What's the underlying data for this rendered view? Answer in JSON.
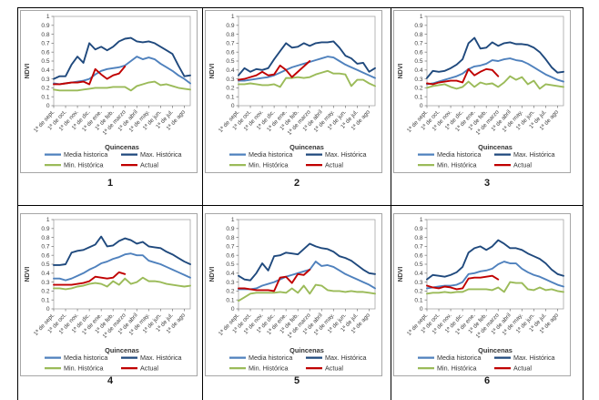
{
  "page": {
    "background": "#ffffff",
    "border_color": "#000000"
  },
  "axis_style": {
    "plot_border_color": "#a6a6a6",
    "tick_color": "#808080",
    "label_color": "#404040"
  },
  "chart_data": [
    {
      "type": "line",
      "number": "1",
      "ylabel": "NDVI",
      "xlabel": "Quincenas",
      "ylim": [
        0,
        1
      ],
      "y_ticks": [
        "1",
        "0.9",
        "0.8",
        "0.7",
        "0.6",
        "0.5",
        "0.4",
        "0.3",
        "0.2",
        "0.1",
        "0"
      ],
      "x_labels": [
        "1ª de sept.",
        "1ª de oct.",
        "1ª de nov.",
        "1ª de dic.",
        "1ª de ene.",
        "1ª de feb.",
        "1ª de marzo",
        "1ª de abril",
        "1ª de may.",
        "1ª de jun.",
        "1ª de jul.",
        "1ª de ago"
      ],
      "legend_position": "bottom",
      "series": [
        {
          "name": "Media historica",
          "color": "#4F81BD",
          "values": [
            0.25,
            0.24,
            0.25,
            0.26,
            0.27,
            0.28,
            0.3,
            0.35,
            0.39,
            0.41,
            0.42,
            0.43,
            0.45,
            0.5,
            0.55,
            0.52,
            0.54,
            0.52,
            0.47,
            0.43,
            0.39,
            0.34,
            0.3,
            0.25
          ]
        },
        {
          "name": "Max. Histórica",
          "color": "#1F497D",
          "values": [
            0.3,
            0.33,
            0.33,
            0.46,
            0.55,
            0.48,
            0.7,
            0.63,
            0.66,
            0.62,
            0.66,
            0.72,
            0.75,
            0.76,
            0.72,
            0.71,
            0.72,
            0.7,
            0.66,
            0.62,
            0.58,
            0.45,
            0.33,
            0.34
          ]
        },
        {
          "name": "Min. Histórica",
          "color": "#9BBB59",
          "values": [
            0.18,
            0.17,
            0.17,
            0.17,
            0.17,
            0.18,
            0.19,
            0.2,
            0.2,
            0.2,
            0.21,
            0.21,
            0.21,
            0.17,
            0.22,
            0.24,
            0.26,
            0.27,
            0.23,
            0.24,
            0.22,
            0.2,
            0.19,
            0.18
          ]
        },
        {
          "name": "Actual",
          "color": "#C00000",
          "values": [
            0.24,
            0.24,
            0.25,
            0.26,
            0.26,
            0.27,
            0.24,
            0.41,
            0.35,
            0.3,
            0.34,
            0.36,
            0.44
          ]
        }
      ]
    },
    {
      "type": "line",
      "number": "2",
      "ylabel": "NDVI",
      "xlabel": "Quincenas",
      "ylim": [
        0,
        1
      ],
      "y_ticks": [
        "1",
        "0.9",
        "0.8",
        "0.7",
        "0.6",
        "0.5",
        "0.4",
        "0.3",
        "0.2",
        "0.1",
        "0"
      ],
      "x_labels": [
        "1ª de sept.",
        "1ª de oct.",
        "1ª de nov.",
        "1ª de dic.",
        "1ª de ene.",
        "1ª de feb.",
        "1ª de marzo",
        "1ª de abril",
        "1ª de may.",
        "1ª de jun.",
        "1ª de jul.",
        "1ª de ago"
      ],
      "legend_position": "bottom",
      "series": [
        {
          "name": "Media historica",
          "color": "#4F81BD",
          "values": [
            0.28,
            0.28,
            0.29,
            0.3,
            0.31,
            0.32,
            0.34,
            0.37,
            0.4,
            0.43,
            0.45,
            0.47,
            0.49,
            0.51,
            0.53,
            0.55,
            0.54,
            0.5,
            0.46,
            0.43,
            0.4,
            0.37,
            0.34,
            0.31
          ]
        },
        {
          "name": "Max. Histórica",
          "color": "#1F497D",
          "values": [
            0.34,
            0.42,
            0.38,
            0.41,
            0.4,
            0.42,
            0.52,
            0.61,
            0.7,
            0.65,
            0.66,
            0.7,
            0.67,
            0.7,
            0.71,
            0.71,
            0.72,
            0.65,
            0.56,
            0.53,
            0.47,
            0.48,
            0.38,
            0.42
          ]
        },
        {
          "name": "Min. Histórica",
          "color": "#9BBB59",
          "values": [
            0.24,
            0.24,
            0.25,
            0.24,
            0.23,
            0.23,
            0.24,
            0.21,
            0.31,
            0.31,
            0.32,
            0.31,
            0.32,
            0.35,
            0.37,
            0.39,
            0.36,
            0.36,
            0.35,
            0.22,
            0.29,
            0.29,
            0.25,
            0.22
          ]
        },
        {
          "name": "Actual",
          "color": "#C00000",
          "values": [
            0.29,
            0.3,
            0.32,
            0.34,
            0.38,
            0.34,
            0.35,
            0.45,
            0.4,
            0.32,
            0.38,
            0.44,
            0.5
          ]
        }
      ]
    },
    {
      "type": "line",
      "number": "3",
      "ylabel": "NDVI",
      "xlabel": "Quincenas",
      "ylim": [
        0,
        1
      ],
      "y_ticks": [
        "1",
        "0.9",
        "0.8",
        "0.7",
        "0.6",
        "0.5",
        "0.4",
        "0.3",
        "0.2",
        "0.1",
        "0"
      ],
      "x_labels": [
        "1ª de sept.",
        "1ª de oct.",
        "1ª de nov.",
        "1ª de dic.",
        "1ª de ene.",
        "1ª de feb.",
        "1ª de marzo",
        "1ª de abril",
        "1ª de may.",
        "1ª de jun.",
        "1ª de jul.",
        "1ª de ago"
      ],
      "legend_position": "bottom",
      "series": [
        {
          "name": "Media historica",
          "color": "#4F81BD",
          "values": [
            0.24,
            0.25,
            0.27,
            0.29,
            0.31,
            0.33,
            0.36,
            0.41,
            0.44,
            0.45,
            0.47,
            0.51,
            0.5,
            0.52,
            0.53,
            0.51,
            0.5,
            0.47,
            0.43,
            0.39,
            0.35,
            0.32,
            0.29,
            0.27
          ]
        },
        {
          "name": "Max. Histórica",
          "color": "#1F497D",
          "values": [
            0.31,
            0.39,
            0.38,
            0.39,
            0.42,
            0.46,
            0.52,
            0.7,
            0.76,
            0.64,
            0.65,
            0.71,
            0.67,
            0.7,
            0.71,
            0.69,
            0.69,
            0.68,
            0.65,
            0.6,
            0.52,
            0.43,
            0.37,
            0.38
          ]
        },
        {
          "name": "Min. Histórica",
          "color": "#9BBB59",
          "values": [
            0.2,
            0.22,
            0.23,
            0.24,
            0.21,
            0.19,
            0.21,
            0.27,
            0.21,
            0.26,
            0.24,
            0.25,
            0.21,
            0.26,
            0.33,
            0.29,
            0.32,
            0.24,
            0.28,
            0.19,
            0.24,
            0.23,
            0.22,
            0.21
          ]
        },
        {
          "name": "Actual",
          "color": "#C00000",
          "values": [
            0.25,
            0.24,
            0.26,
            0.27,
            0.28,
            0.28,
            0.26,
            0.41,
            0.34,
            0.38,
            0.41,
            0.4,
            0.33
          ]
        }
      ]
    },
    {
      "type": "line",
      "number": "4",
      "ylabel": "NDVI",
      "xlabel": "Quincenas",
      "ylim": [
        0,
        1
      ],
      "y_ticks": [
        "1",
        "0.9",
        "0.8",
        "0.7",
        "0.6",
        "0.5",
        "0.4",
        "0.3",
        "0.2",
        "0.1",
        "0"
      ],
      "x_labels": [
        "1ª de sept.",
        "1ª de oct.",
        "1ª de nov.",
        "1ª de dic.",
        "1ª de ene.",
        "1ª de feb.",
        "1ª de marzo",
        "1ª de abril",
        "1ª de may.",
        "1ª de jun.",
        "1ª de jul.",
        "1ª de ago"
      ],
      "legend_position": "bottom",
      "series": [
        {
          "name": "Media historica",
          "color": "#4F81BD",
          "values": [
            0.34,
            0.34,
            0.32,
            0.34,
            0.37,
            0.4,
            0.44,
            0.47,
            0.51,
            0.53,
            0.56,
            0.58,
            0.61,
            0.62,
            0.6,
            0.6,
            0.54,
            0.52,
            0.5,
            0.47,
            0.44,
            0.41,
            0.38,
            0.35
          ]
        },
        {
          "name": "Max. Histórica",
          "color": "#1F497D",
          "values": [
            0.49,
            0.49,
            0.5,
            0.63,
            0.65,
            0.66,
            0.69,
            0.72,
            0.81,
            0.7,
            0.71,
            0.76,
            0.79,
            0.77,
            0.73,
            0.75,
            0.7,
            0.69,
            0.68,
            0.64,
            0.61,
            0.57,
            0.53,
            0.5
          ]
        },
        {
          "name": "Min. Histórica",
          "color": "#9BBB59",
          "values": [
            0.23,
            0.23,
            0.22,
            0.23,
            0.25,
            0.26,
            0.28,
            0.29,
            0.28,
            0.25,
            0.31,
            0.27,
            0.34,
            0.28,
            0.3,
            0.35,
            0.31,
            0.31,
            0.3,
            0.28,
            0.27,
            0.26,
            0.25,
            0.26
          ]
        },
        {
          "name": "Actual",
          "color": "#C00000",
          "values": [
            0.27,
            0.27,
            0.27,
            0.27,
            0.28,
            0.29,
            0.31,
            0.36,
            0.35,
            0.34,
            0.35,
            0.41,
            0.39
          ]
        }
      ]
    },
    {
      "type": "line",
      "number": "5",
      "ylabel": "NDVI",
      "xlabel": "Quincenas",
      "ylim": [
        0,
        1
      ],
      "y_ticks": [
        "1",
        "0.9",
        "0.8",
        "0.7",
        "0.6",
        "0.5",
        "0.4",
        "0.3",
        "0.2",
        "0.1",
        "0"
      ],
      "x_labels": [
        "1ª de sept.",
        "1ª de oct.",
        "1ª de nov.",
        "1ª de dic.",
        "1ª de ene.",
        "1ª de feb.",
        "1ª de marzo",
        "1ª de abril",
        "1ª de may.",
        "1ª de jun.",
        "1ª de jul.",
        "1ª de ago"
      ],
      "legend_position": "bottom",
      "series": [
        {
          "name": "Media historica",
          "color": "#4F81BD",
          "values": [
            0.22,
            0.22,
            0.22,
            0.23,
            0.26,
            0.28,
            0.3,
            0.33,
            0.36,
            0.38,
            0.4,
            0.42,
            0.44,
            0.53,
            0.48,
            0.49,
            0.47,
            0.43,
            0.39,
            0.36,
            0.33,
            0.3,
            0.27,
            0.23
          ]
        },
        {
          "name": "Max. Histórica",
          "color": "#1F497D",
          "values": [
            0.37,
            0.33,
            0.32,
            0.4,
            0.51,
            0.43,
            0.59,
            0.6,
            0.63,
            0.62,
            0.61,
            0.67,
            0.73,
            0.7,
            0.68,
            0.67,
            0.64,
            0.59,
            0.57,
            0.54,
            0.49,
            0.44,
            0.4,
            0.39
          ]
        },
        {
          "name": "Min. Histórica",
          "color": "#9BBB59",
          "values": [
            0.09,
            0.13,
            0.17,
            0.18,
            0.18,
            0.18,
            0.18,
            0.19,
            0.18,
            0.23,
            0.18,
            0.26,
            0.17,
            0.27,
            0.26,
            0.21,
            0.2,
            0.2,
            0.19,
            0.2,
            0.19,
            0.19,
            0.18,
            0.17
          ]
        },
        {
          "name": "Actual",
          "color": "#C00000",
          "values": [
            0.23,
            0.23,
            0.22,
            0.21,
            0.21,
            0.21,
            0.2,
            0.35,
            0.36,
            0.29,
            0.39,
            0.38,
            0.44
          ]
        }
      ]
    },
    {
      "type": "line",
      "number": "6",
      "ylabel": "NDVI",
      "xlabel": "Quincenas",
      "ylim": [
        0,
        1
      ],
      "y_ticks": [
        "1",
        "0.9",
        "0.8",
        "0.7",
        "0.6",
        "0.5",
        "0.4",
        "0.3",
        "0.2",
        "0.1",
        "0"
      ],
      "x_labels": [
        "1ª de sept.",
        "1ª de oct.",
        "1ª de nov.",
        "1ª de dic.",
        "1ª de ene.",
        "1ª de feb.",
        "1ª de marzo",
        "1ª de abril",
        "1ª de may.",
        "1ª de jun.",
        "1ª de jul.",
        "1ª de ago"
      ],
      "legend_position": "bottom",
      "series": [
        {
          "name": "Media historica",
          "color": "#4F81BD",
          "values": [
            0.23,
            0.24,
            0.25,
            0.26,
            0.26,
            0.27,
            0.3,
            0.39,
            0.4,
            0.42,
            0.43,
            0.45,
            0.5,
            0.53,
            0.51,
            0.51,
            0.45,
            0.41,
            0.38,
            0.36,
            0.33,
            0.3,
            0.27,
            0.25
          ]
        },
        {
          "name": "Max. Histórica",
          "color": "#1F497D",
          "values": [
            0.33,
            0.38,
            0.37,
            0.36,
            0.38,
            0.41,
            0.47,
            0.63,
            0.68,
            0.7,
            0.66,
            0.7,
            0.77,
            0.73,
            0.68,
            0.68,
            0.66,
            0.62,
            0.59,
            0.56,
            0.51,
            0.44,
            0.39,
            0.37
          ]
        },
        {
          "name": "Min. Histórica",
          "color": "#9BBB59",
          "values": [
            0.17,
            0.18,
            0.18,
            0.19,
            0.18,
            0.19,
            0.19,
            0.22,
            0.22,
            0.22,
            0.22,
            0.21,
            0.24,
            0.19,
            0.3,
            0.29,
            0.29,
            0.22,
            0.21,
            0.24,
            0.21,
            0.22,
            0.2,
            0.19
          ]
        },
        {
          "name": "Actual",
          "color": "#C00000",
          "values": [
            0.26,
            0.24,
            0.23,
            0.25,
            0.24,
            0.22,
            0.23,
            0.34,
            0.35,
            0.35,
            0.36,
            0.37,
            0.33
          ]
        }
      ]
    }
  ]
}
